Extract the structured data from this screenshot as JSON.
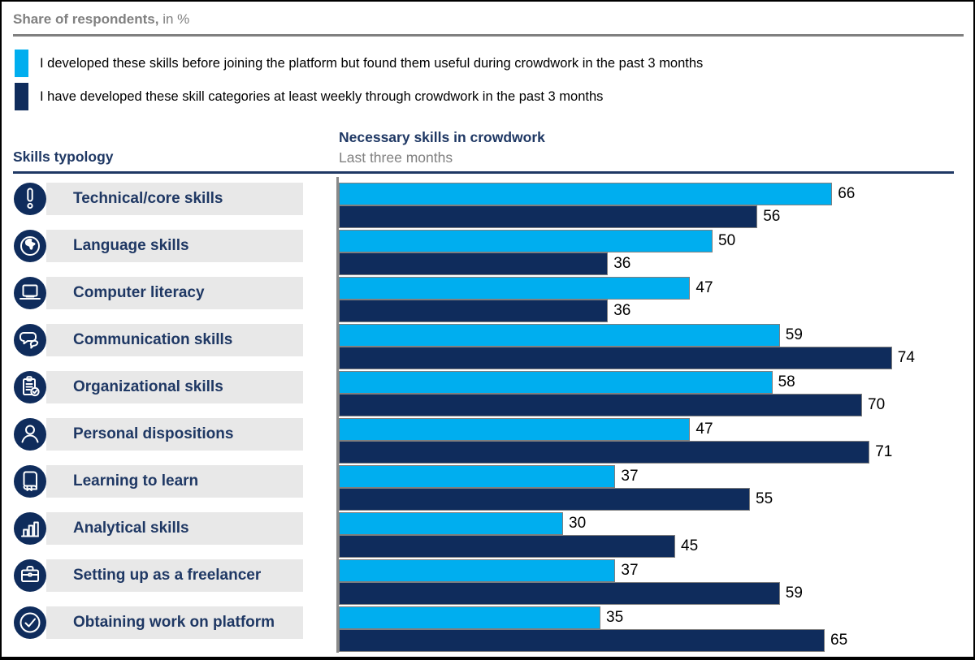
{
  "header": {
    "title_bold": "Share of respondents,",
    "title_rest": " in %"
  },
  "legend": [
    {
      "name": "skills-before-platform",
      "label": "I developed these skills before joining the platform but found them useful during crowdwork in the past 3 months",
      "color": "#00AEEF"
    },
    {
      "name": "skills-through-crowdwork",
      "label": "I have developed these skill categories at least weekly through crowdwork in the past 3 months",
      "color": "#0F2C5C"
    }
  ],
  "columns": {
    "left_header": "Skills typology",
    "right_header": "Necessary skills in crowdwork",
    "right_subheader": "Last three months"
  },
  "chart_data": {
    "type": "bar",
    "orientation": "horizontal",
    "title": "Necessary skills in crowdwork",
    "subtitle": "Last three months",
    "unit": "%",
    "xlim": [
      0,
      100
    ],
    "grid": false,
    "value_labels": true,
    "legend_position": "top",
    "categories": [
      "Technical/core skills",
      "Language skills",
      "Computer literacy",
      "Communication skills",
      "Organizational skills",
      "Personal dispositions",
      "Learning to learn",
      "Analytical skills",
      "Setting up as a freelancer",
      "Obtaining work on platform"
    ],
    "category_icons": [
      "exclamation-icon",
      "globe-icon",
      "laptop-icon",
      "speech-bubbles-icon",
      "clipboard-check-icon",
      "person-icon",
      "book-icon",
      "bar-chart-icon",
      "briefcase-icon",
      "check-circle-icon"
    ],
    "series": [
      {
        "name": "I developed these skills before joining the platform but found them useful during crowdwork in the past 3 months",
        "color": "#00AEEF",
        "values": [
          66,
          50,
          47,
          59,
          58,
          47,
          37,
          30,
          37,
          35
        ]
      },
      {
        "name": "I have developed these skill categories at least weekly through crowdwork in the past 3 months",
        "color": "#0F2C5C",
        "values": [
          56,
          36,
          36,
          74,
          70,
          71,
          55,
          45,
          59,
          65
        ]
      }
    ]
  },
  "colors": {
    "accent_navy": "#1F3864",
    "bar_navy": "#0F2C5C",
    "light_blue": "#00AEEF",
    "gray": "#808080",
    "row_background": "#E8E8E8"
  }
}
